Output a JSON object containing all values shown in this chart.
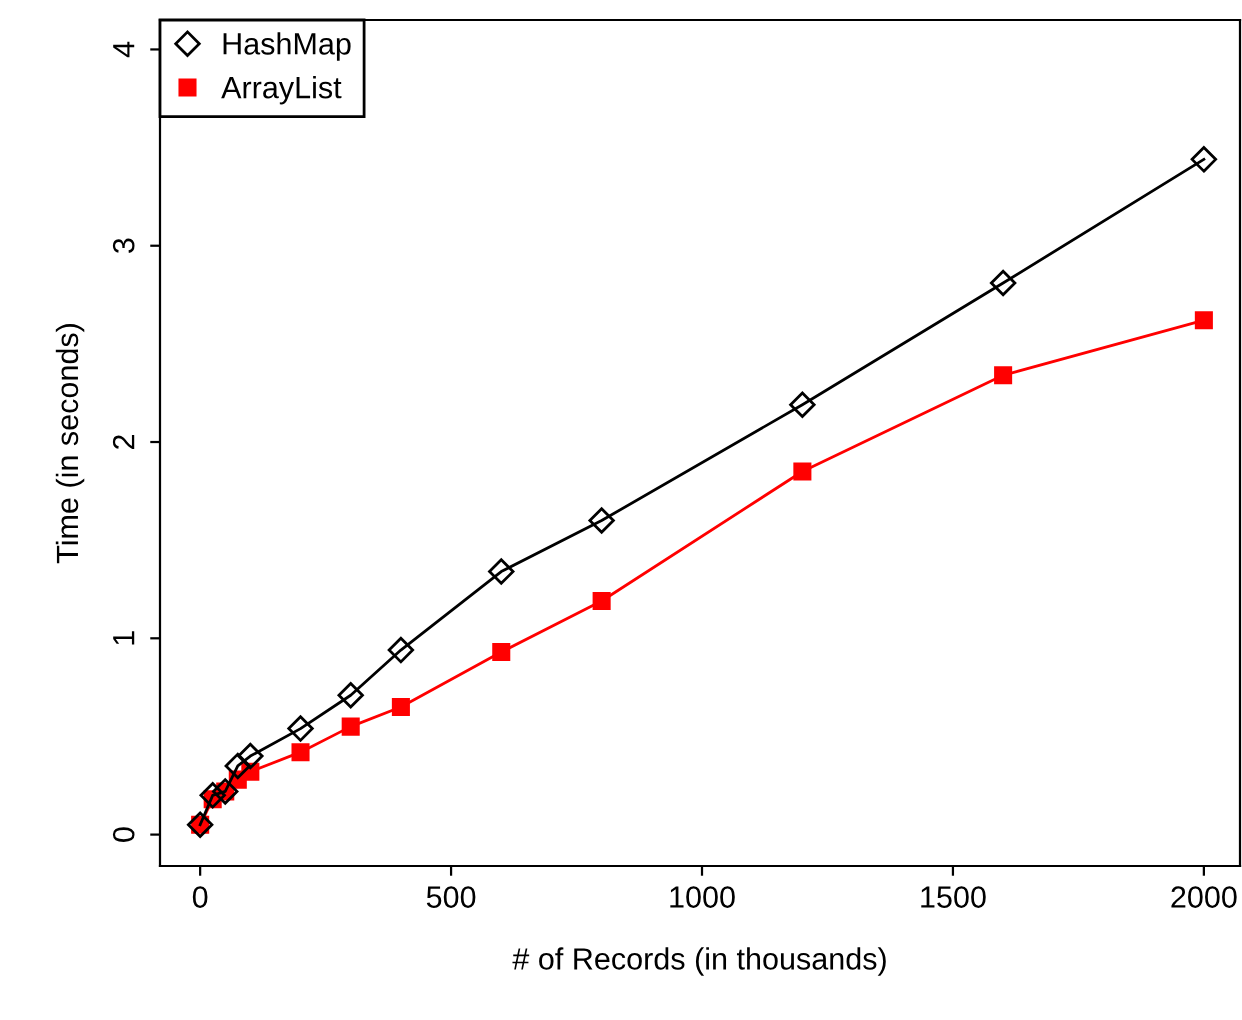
{
  "chart_data": {
    "type": "line",
    "xlabel": "# of Records (in thousands)",
    "ylabel": "Time (in seconds)",
    "x": [
      0,
      25,
      50,
      75,
      100,
      200,
      300,
      400,
      600,
      800,
      1200,
      1600,
      2000
    ],
    "series": [
      {
        "name": "HashMap",
        "color": "#000000",
        "marker": "diamond",
        "values": [
          0.05,
          0.2,
          0.22,
          0.35,
          0.4,
          0.54,
          0.71,
          0.94,
          1.34,
          1.6,
          2.19,
          2.81,
          3.44
        ]
      },
      {
        "name": "ArrayList",
        "color": "#ff0000",
        "marker": "square",
        "values": [
          0.05,
          0.18,
          0.22,
          0.28,
          0.32,
          0.42,
          0.55,
          0.65,
          0.93,
          1.19,
          1.85,
          2.34,
          2.62
        ]
      }
    ],
    "xlim": [
      -80,
      2072
    ],
    "ylim": [
      -0.16,
      4.15
    ],
    "xticks": [
      0,
      500,
      1000,
      1500,
      2000
    ],
    "yticks": [
      0,
      1,
      2,
      3,
      4
    ],
    "grid": false,
    "legend": "top left",
    "line_style": "solid"
  }
}
